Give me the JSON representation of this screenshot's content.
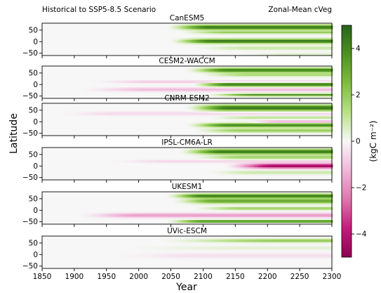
{
  "figure": {
    "left_title": "Historical to SSP5-8.5 Scenario",
    "right_title": "Zonal-Mean cVeg",
    "ylabel": "Latitude",
    "xlabel": "Year"
  },
  "colorbar": {
    "label": "(kgC m$^{-2}$)",
    "label_display": "(kgC m⁻²)",
    "ticks": [
      "4",
      "2",
      "0",
      "−2",
      "−4"
    ],
    "cmap": "PiYG",
    "vmin": -5,
    "vmax": 5,
    "colors": {
      "neg_strong": "#8e0152",
      "neg_mid": "#de77ae",
      "neutral": "#f7f7f7",
      "pos_mid": "#7fbc41",
      "pos_strong": "#276419"
    }
  },
  "chart_data": {
    "type": "heatmap",
    "x_ticks": [
      "1850",
      "1900",
      "1950",
      "2000",
      "2050",
      "2100",
      "2150",
      "2200",
      "2250",
      "2300"
    ],
    "y_ticks": [
      "50",
      "0",
      "−50"
    ],
    "xlim": [
      1850,
      2300
    ],
    "ylim": [
      -60,
      80
    ],
    "panels": [
      {
        "title": "CanESM5",
        "bands": [
          {
            "lat": 62,
            "width": 10,
            "start": 2040,
            "ramp": 70,
            "max": 4.5
          },
          {
            "lat": 40,
            "width": 6,
            "start": 2060,
            "ramp": 80,
            "max": 2.0
          },
          {
            "lat": 2,
            "width": 9,
            "start": 2045,
            "ramp": 70,
            "max": 4.6
          },
          {
            "lat": -28,
            "width": 7,
            "start": 2080,
            "ramp": 90,
            "max": 1.0
          },
          {
            "lat": -55,
            "width": 5,
            "start": 2150,
            "ramp": 90,
            "max": 0.6
          }
        ]
      },
      {
        "title": "CESM2-WACCM",
        "bands": [
          {
            "lat": 62,
            "width": 9,
            "start": 2070,
            "ramp": 70,
            "max": 4.3
          },
          {
            "lat": 42,
            "width": 7,
            "start": 2090,
            "ramp": 80,
            "max": 1.6
          },
          {
            "lat": 12,
            "width": 5,
            "start": 1920,
            "ramp": 100,
            "max": -1.0
          },
          {
            "lat": 0,
            "width": 8,
            "start": 2080,
            "ramp": 60,
            "max": 4.5
          },
          {
            "lat": -22,
            "width": 8,
            "start": 1900,
            "ramp": 120,
            "max": -1.2
          },
          {
            "lat": -45,
            "width": 5,
            "start": 2100,
            "ramp": 80,
            "max": 3.8
          }
        ]
      },
      {
        "title": "CNRM-ESM2",
        "bands": [
          {
            "lat": 60,
            "width": 12,
            "start": 2070,
            "ramp": 70,
            "max": 4.5
          },
          {
            "lat": 35,
            "width": 8,
            "start": 1870,
            "ramp": 100,
            "max": -0.6
          },
          {
            "lat": 18,
            "width": 6,
            "start": 2100,
            "ramp": 80,
            "max": 1.2
          },
          {
            "lat": 0,
            "width": 6,
            "start": 2160,
            "ramp": 60,
            "max": -1.5
          },
          {
            "lat": -15,
            "width": 8,
            "start": 2070,
            "ramp": 70,
            "max": 4.2
          },
          {
            "lat": -38,
            "width": 8,
            "start": 2080,
            "ramp": 80,
            "max": 2.0
          }
        ]
      },
      {
        "title": "IPSL-CM6A-LR",
        "bands": [
          {
            "lat": 62,
            "width": 10,
            "start": 2060,
            "ramp": 70,
            "max": 4.5
          },
          {
            "lat": 38,
            "width": 8,
            "start": 2080,
            "ramp": 80,
            "max": 1.8
          },
          {
            "lat": 20,
            "width": 6,
            "start": 1950,
            "ramp": 100,
            "max": -0.7
          },
          {
            "lat": 0,
            "width": 10,
            "start": 2130,
            "ramp": 80,
            "max": -4.6
          },
          {
            "lat": -28,
            "width": 8,
            "start": 2100,
            "ramp": 80,
            "max": 0.9
          }
        ]
      },
      {
        "title": "UKESM1",
        "bands": [
          {
            "lat": 62,
            "width": 8,
            "start": 2040,
            "ramp": 60,
            "max": 4.5
          },
          {
            "lat": 40,
            "width": 10,
            "start": 2050,
            "ramp": 70,
            "max": 3.2
          },
          {
            "lat": 8,
            "width": 6,
            "start": 2080,
            "ramp": 80,
            "max": 2.0
          },
          {
            "lat": -22,
            "width": 9,
            "start": 1900,
            "ramp": 100,
            "max": -1.8
          },
          {
            "lat": -48,
            "width": 5,
            "start": 2040,
            "ramp": 60,
            "max": 4.4
          }
        ]
      },
      {
        "title": "UVic-ESCM",
        "bands": [
          {
            "lat": 60,
            "width": 7,
            "start": 2020,
            "ramp": 200,
            "max": 2.2
          },
          {
            "lat": 28,
            "width": 8,
            "start": 1960,
            "ramp": 200,
            "max": 0.4
          },
          {
            "lat": -5,
            "width": 10,
            "start": 1950,
            "ramp": 150,
            "max": -0.5
          }
        ]
      }
    ]
  }
}
